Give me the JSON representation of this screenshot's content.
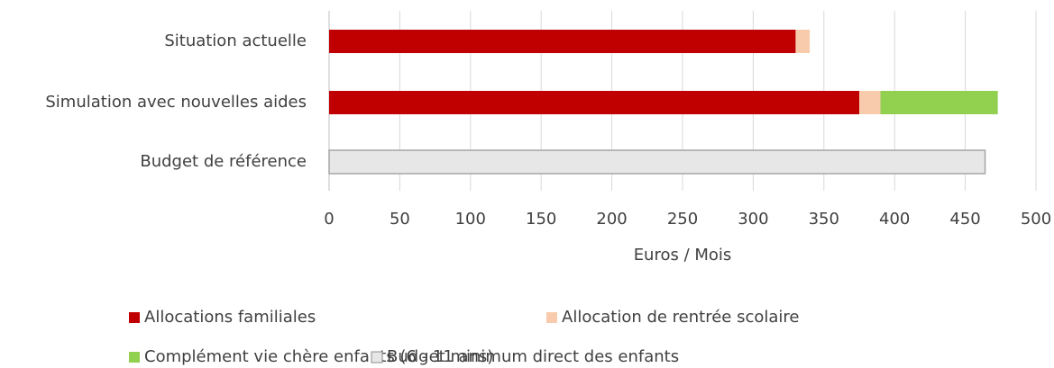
{
  "chart_data": {
    "type": "bar",
    "orientation": "horizontal",
    "stacked": true,
    "x_label": "Euros / Mois",
    "categories": [
      "Situation actuelle",
      "Simulation avec nouvelles aides",
      "Budget de référence"
    ],
    "series": [
      {
        "name": "Allocations familiales",
        "color": "#c00000",
        "values": [
          330,
          375,
          null
        ]
      },
      {
        "name": "Allocation de rentrée scolaire",
        "color": "#f8cbad",
        "values": [
          10,
          15,
          null
        ]
      },
      {
        "name": "Complément vie chère enfants (6 - 11 ans)",
        "color": "#92d050",
        "values": [
          null,
          83,
          null
        ]
      },
      {
        "name": "Budget minimum direct des enfants",
        "color": "#e7e7e7",
        "values": [
          null,
          null,
          464
        ]
      }
    ],
    "xlim": [
      0,
      500
    ],
    "xticks": [
      0,
      50,
      100,
      150,
      200,
      250,
      300,
      350,
      400,
      450,
      500
    ],
    "grid": true
  }
}
